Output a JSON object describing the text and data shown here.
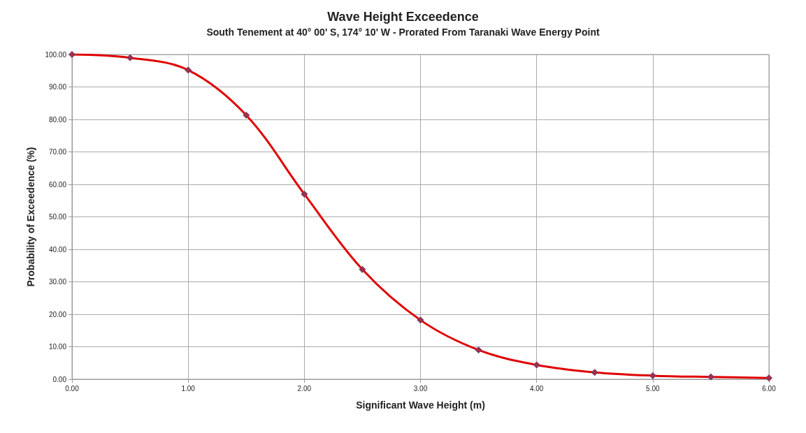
{
  "chart_data": {
    "type": "line",
    "title": "Wave Height Exceedence",
    "subtitle": "South Tenement at 40° 00' S, 174° 10' W - Prorated From Taranaki Wave Energy Point",
    "xlabel": "Significant Wave Height (m)",
    "ylabel": "Probability of Exceedence (%)",
    "x": [
      0,
      0.5,
      1,
      1.5,
      2,
      2.5,
      3,
      3.5,
      4,
      4.5,
      5,
      5.5,
      6
    ],
    "series": [
      {
        "color": "#e00000",
        "values": [
          100,
          99,
          95.2,
          81.3,
          57,
          33.8,
          18.2,
          9,
          4.4,
          2.1,
          1.1,
          0.7,
          0.4
        ]
      }
    ],
    "xlim": [
      0,
      6
    ],
    "ylim": [
      0,
      100
    ],
    "xticks": [
      {
        "value": 0,
        "label": "0.00"
      },
      {
        "value": 1,
        "label": "1.00"
      },
      {
        "value": 2,
        "label": "2.00"
      },
      {
        "value": 3,
        "label": "3.00"
      },
      {
        "value": 4,
        "label": "4.00"
      },
      {
        "value": 5,
        "label": "5.00"
      },
      {
        "value": 6,
        "label": "6.00"
      }
    ],
    "yticks": [
      {
        "value": 0,
        "label": "0.00"
      },
      {
        "value": 10,
        "label": "10.00"
      },
      {
        "value": 20,
        "label": "20.00"
      },
      {
        "value": 30,
        "label": "30.00"
      },
      {
        "value": 40,
        "label": "40.00"
      },
      {
        "value": 50,
        "label": "50.00"
      },
      {
        "value": 60,
        "label": "60.00"
      },
      {
        "value": 70,
        "label": "70.00"
      },
      {
        "value": 80,
        "label": "80.00"
      },
      {
        "value": 90,
        "label": "90.00"
      },
      {
        "value": 100,
        "label": "100.00"
      }
    ],
    "grid": true,
    "marker": "diamond",
    "line_style": "solid"
  }
}
